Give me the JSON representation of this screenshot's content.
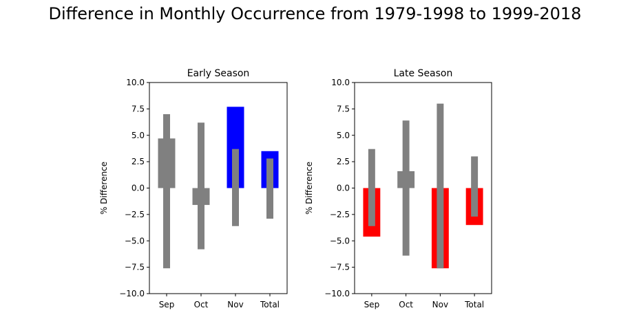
{
  "title": "Difference in Monthly Occurrence from 1979-1998 to 1999-2018",
  "colors": {
    "positive": "#0000ff",
    "negative": "#ff0000",
    "neutral": "#808080",
    "range": "#808080"
  },
  "chart_data": [
    {
      "type": "bar",
      "title": "Early Season",
      "ylabel": "% Difference",
      "xlabel": "",
      "ylim": [
        -10,
        10
      ],
      "yticks": [
        "−10.0",
        "−7.5",
        "−5.0",
        "−2.5",
        "0.0",
        "2.5",
        "5.0",
        "7.5",
        "10.0"
      ],
      "categories": [
        "Sep",
        "Oct",
        "Nov",
        "Total"
      ],
      "values": [
        4.7,
        -1.6,
        7.7,
        3.5
      ],
      "bar_colors": [
        "#808080",
        "#808080",
        "#0000ff",
        "#0000ff"
      ],
      "range_low": [
        -7.6,
        -5.8,
        -3.6,
        -2.9
      ],
      "range_high": [
        7.0,
        6.2,
        3.7,
        2.8
      ],
      "grid": false
    },
    {
      "type": "bar",
      "title": "Late Season",
      "ylabel": "% Difference",
      "xlabel": "",
      "ylim": [
        -10,
        10
      ],
      "yticks": [
        "−10.0",
        "−7.5",
        "−5.0",
        "−2.5",
        "0.0",
        "2.5",
        "5.0",
        "7.5",
        "10.0"
      ],
      "categories": [
        "Sep",
        "Oct",
        "Nov",
        "Total"
      ],
      "values": [
        -4.6,
        1.6,
        -7.6,
        -3.5
      ],
      "bar_colors": [
        "#ff0000",
        "#808080",
        "#ff0000",
        "#ff0000"
      ],
      "range_low": [
        -3.6,
        -6.4,
        -7.6,
        -2.7
      ],
      "range_high": [
        3.7,
        6.4,
        8.0,
        3.0
      ],
      "grid": false
    }
  ]
}
